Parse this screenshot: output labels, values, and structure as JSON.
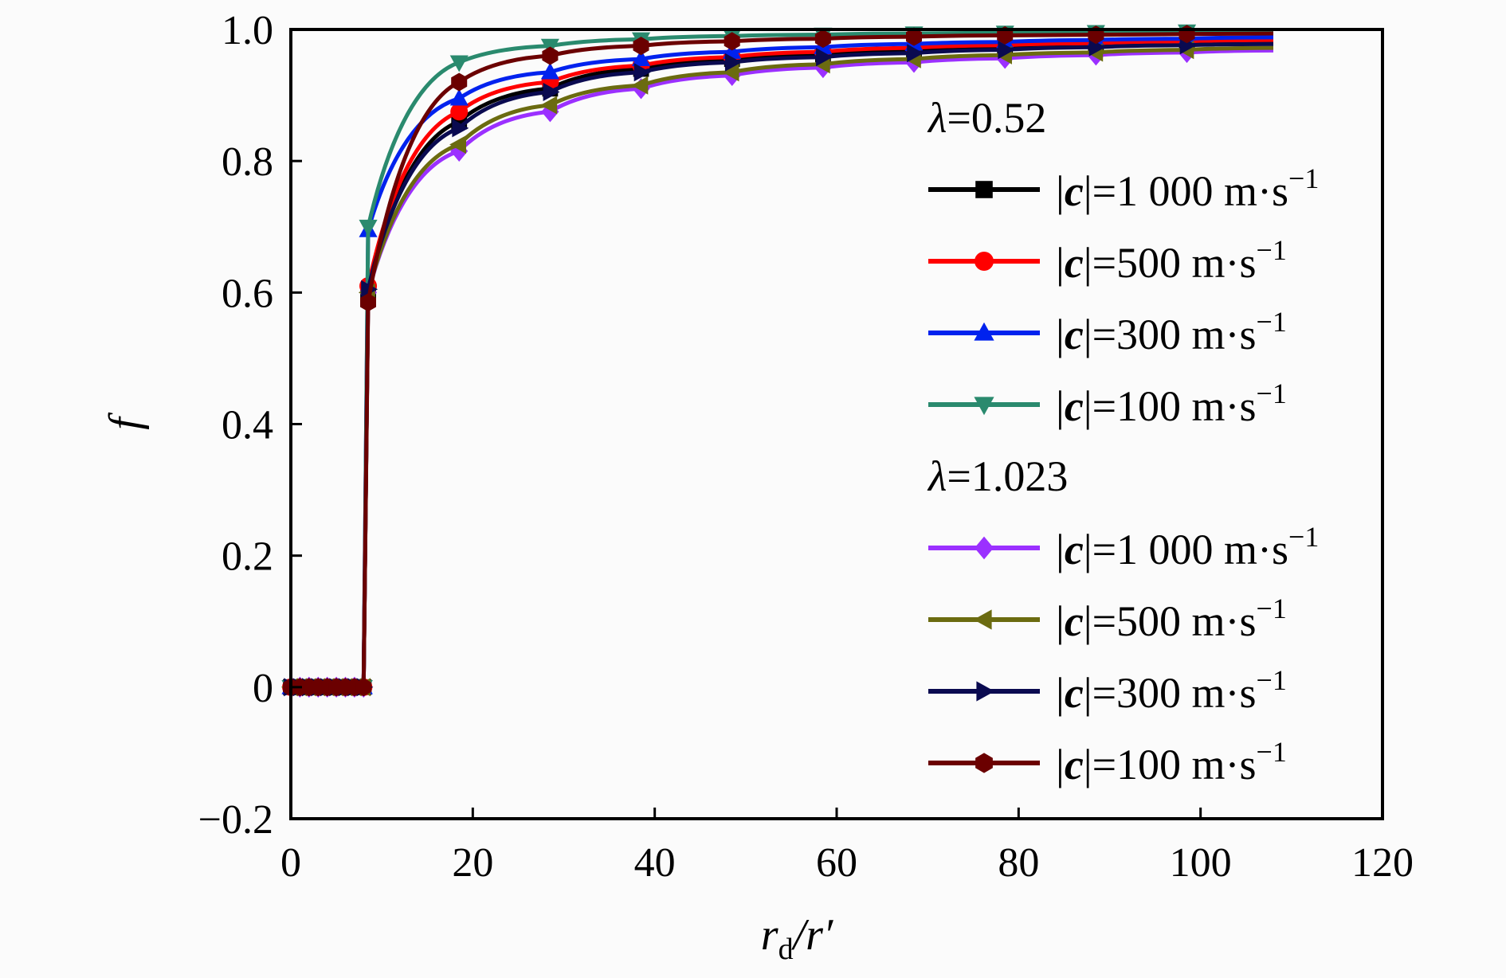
{
  "chart_data": {
    "type": "line",
    "xlabel": "r_d/r′",
    "xlabel_main": "r",
    "xlabel_sub": "d",
    "xlabel_rest": "/r′",
    "ylabel": "f",
    "xlim": [
      0,
      120
    ],
    "ylim": [
      -0.2,
      1.0
    ],
    "x_ticks": [
      0,
      20,
      40,
      60,
      80,
      100,
      120
    ],
    "y_ticks": [
      -0.2,
      0,
      0.2,
      0.4,
      0.6,
      0.8,
      1.0
    ],
    "x_tick_labels": [
      "0",
      "20",
      "40",
      "60",
      "80",
      "100",
      "120"
    ],
    "y_tick_labels": [
      "−0.2",
      "0",
      "0.2",
      "0.4",
      "0.6",
      "0.8",
      "1.0"
    ],
    "grid": false,
    "legend_position": "right",
    "legend_groups": [
      {
        "heading": "λ=0.52",
        "heading_symbol": "λ",
        "heading_value": "=0.52",
        "series_index": [
          0,
          1,
          2,
          3
        ]
      },
      {
        "heading": "λ=1.023",
        "heading_symbol": "λ",
        "heading_value": "=1.023",
        "series_index": [
          4,
          5,
          6,
          7
        ]
      }
    ],
    "x": [
      0,
      1,
      2,
      3,
      4,
      5,
      6,
      7,
      8,
      8.5,
      18.5,
      28.5,
      38.5,
      48.5,
      58.5,
      68.5,
      78.5,
      88.5,
      98.5,
      108
    ],
    "series": [
      {
        "name": "|c|=1 000 m·s⁻¹",
        "c_value": "=1 000 m·s",
        "exp": "−1",
        "color": "#000000",
        "marker": "square",
        "values": [
          0,
          0,
          0,
          0,
          0,
          0,
          0,
          0,
          0,
          0.6,
          0.86,
          0.91,
          0.94,
          0.955,
          0.962,
          0.968,
          0.972,
          0.976,
          0.979,
          0.981
        ]
      },
      {
        "name": "|c|=500 m·s⁻¹",
        "c_value": "=500 m·s",
        "exp": "−1",
        "color": "#ff0000",
        "marker": "circle",
        "values": [
          0,
          0,
          0,
          0,
          0,
          0,
          0,
          0,
          0,
          0.61,
          0.875,
          0.92,
          0.945,
          0.958,
          0.966,
          0.972,
          0.976,
          0.979,
          0.982,
          0.984
        ]
      },
      {
        "name": "|c|=300 m·s⁻¹",
        "c_value": "=300 m·s",
        "exp": "−1",
        "color": "#0022ee",
        "marker": "triangle-up",
        "values": [
          0,
          0,
          0,
          0,
          0,
          0,
          0,
          0,
          0,
          0.695,
          0.895,
          0.935,
          0.955,
          0.966,
          0.973,
          0.978,
          0.981,
          0.984,
          0.986,
          0.988
        ]
      },
      {
        "name": "|c|=100 m·s⁻¹",
        "c_value": "=100 m·s",
        "exp": "−1",
        "color": "#2a8a6e",
        "marker": "triangle-down",
        "values": [
          0,
          0,
          0,
          0,
          0,
          0,
          0,
          0,
          0,
          0.7,
          0.95,
          0.975,
          0.985,
          0.99,
          0.992,
          0.994,
          0.995,
          0.996,
          0.997,
          0.997
        ]
      },
      {
        "name": "|c|=1 000 m·s⁻¹",
        "c_value": "=1 000 m·s",
        "exp": "−1",
        "color": "#9b30ff",
        "marker": "diamond",
        "values": [
          0,
          0,
          0,
          0,
          0,
          0,
          0,
          0,
          0,
          0.6,
          0.815,
          0.875,
          0.91,
          0.93,
          0.942,
          0.95,
          0.956,
          0.961,
          0.965,
          0.968
        ]
      },
      {
        "name": "|c|=500 m·s⁻¹",
        "c_value": "=500 m·s",
        "exp": "−1",
        "color": "#6b6b10",
        "marker": "triangle-left",
        "values": [
          0,
          0,
          0,
          0,
          0,
          0,
          0,
          0,
          0,
          0.6,
          0.825,
          0.885,
          0.915,
          0.935,
          0.947,
          0.955,
          0.961,
          0.965,
          0.969,
          0.972
        ]
      },
      {
        "name": "|c|=300 m·s⁻¹",
        "c_value": "=300 m·s",
        "exp": "−1",
        "color": "#0a0a50",
        "marker": "triangle-right",
        "values": [
          0,
          0,
          0,
          0,
          0,
          0,
          0,
          0,
          0,
          0.605,
          0.85,
          0.905,
          0.935,
          0.95,
          0.958,
          0.964,
          0.969,
          0.973,
          0.976,
          0.978
        ]
      },
      {
        "name": "|c|=100 m·s⁻¹",
        "c_value": "=100 m·s",
        "exp": "−1",
        "color": "#6b0000",
        "marker": "hexagon",
        "values": [
          0,
          0,
          0,
          0,
          0,
          0,
          0,
          0,
          0,
          0.585,
          0.92,
          0.96,
          0.975,
          0.982,
          0.986,
          0.989,
          0.991,
          0.992,
          0.993,
          0.994
        ]
      }
    ]
  }
}
